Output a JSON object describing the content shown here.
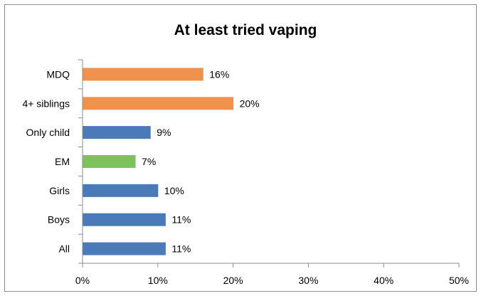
{
  "chart_data": {
    "type": "bar",
    "orientation": "horizontal",
    "title": "At least tried vaping",
    "xlabel": "",
    "ylabel": "",
    "xlim": [
      0,
      50
    ],
    "x_ticks": [
      "0%",
      "10%",
      "20%",
      "30%",
      "40%",
      "50%"
    ],
    "categories": [
      "MDQ",
      "4+ siblings",
      "Only child",
      "EM",
      "Girls",
      "Boys",
      "All"
    ],
    "values": [
      16,
      20,
      9,
      7,
      10,
      11,
      11
    ],
    "value_labels": [
      "16%",
      "20%",
      "9%",
      "7%",
      "10%",
      "11%",
      "11%"
    ],
    "bar_colors": [
      "#f0924b",
      "#f0924b",
      "#4a7ab7",
      "#7cc25d",
      "#4a7ab7",
      "#4a7ab7",
      "#4a7ab7"
    ],
    "grid": false,
    "legend": "none"
  }
}
